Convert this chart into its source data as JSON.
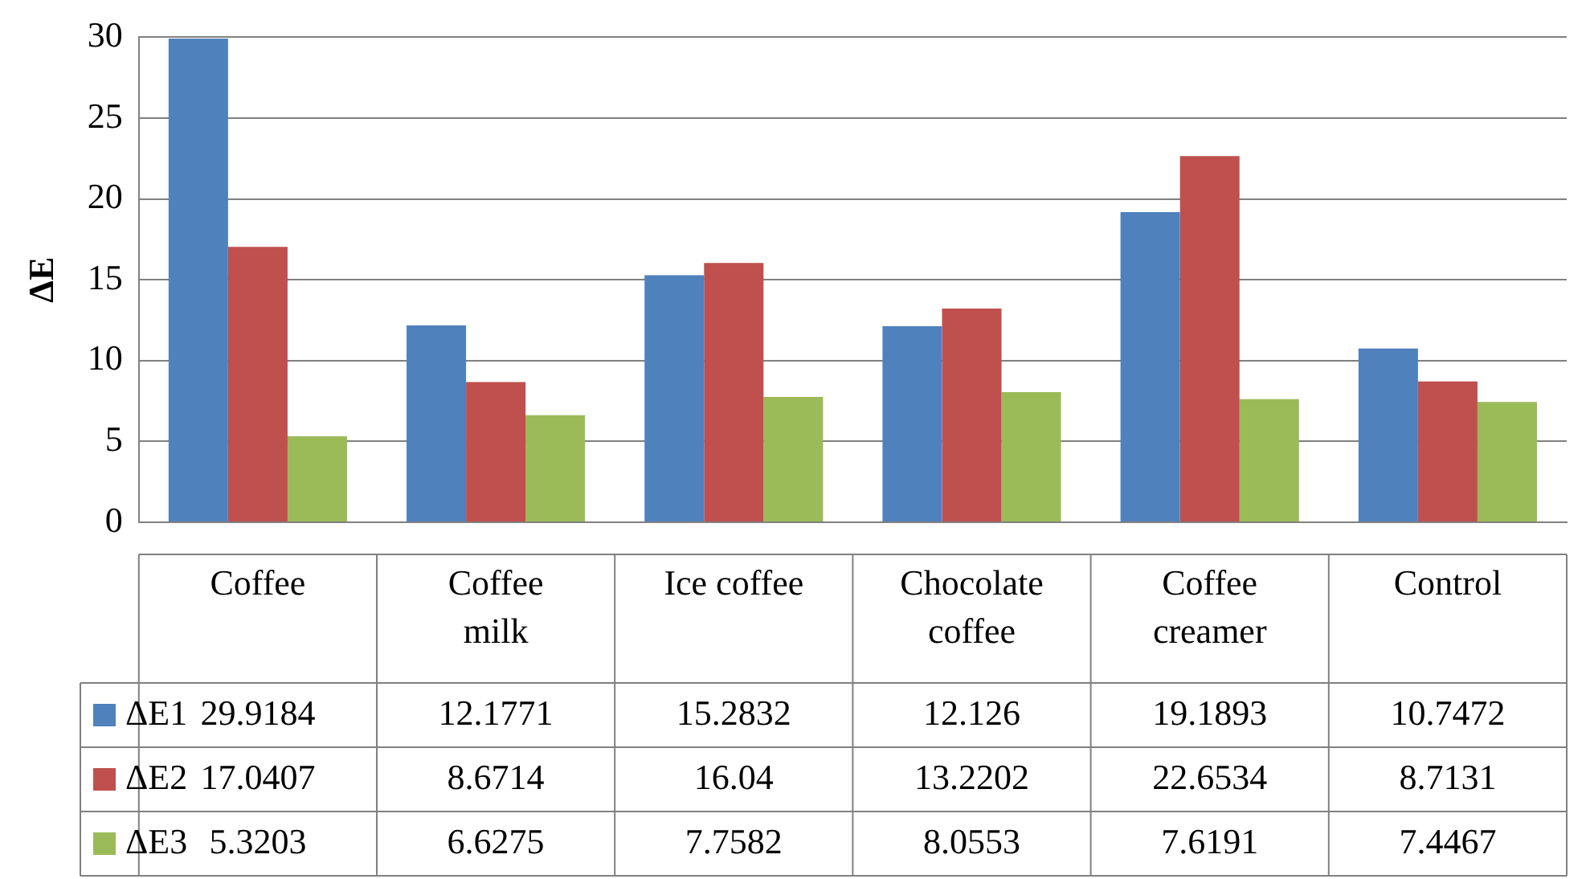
{
  "chart_data": {
    "type": "bar",
    "ylabel": "ΔE",
    "categories": [
      "Coffee",
      "Coffee milk",
      "Ice coffee",
      "Chocolate coffee",
      "Coffee creamer",
      "Control"
    ],
    "series": [
      {
        "name": "ΔE1",
        "color": "#4f81bd",
        "values": [
          29.9184,
          12.1771,
          15.2832,
          12.126,
          19.1893,
          10.7472
        ]
      },
      {
        "name": "ΔE2",
        "color": "#c0504d",
        "values": [
          17.0407,
          8.6714,
          16.04,
          13.2202,
          22.6534,
          8.7131
        ]
      },
      {
        "name": "ΔE3",
        "color": "#9bbb59",
        "values": [
          5.3203,
          6.6275,
          7.7582,
          8.0553,
          7.6191,
          7.4467
        ]
      }
    ],
    "ylim": [
      0,
      30
    ],
    "yticks": [
      0,
      5,
      10,
      15,
      20,
      25,
      30
    ],
    "grid": "y",
    "legend": "bottom",
    "data_labels": true
  }
}
